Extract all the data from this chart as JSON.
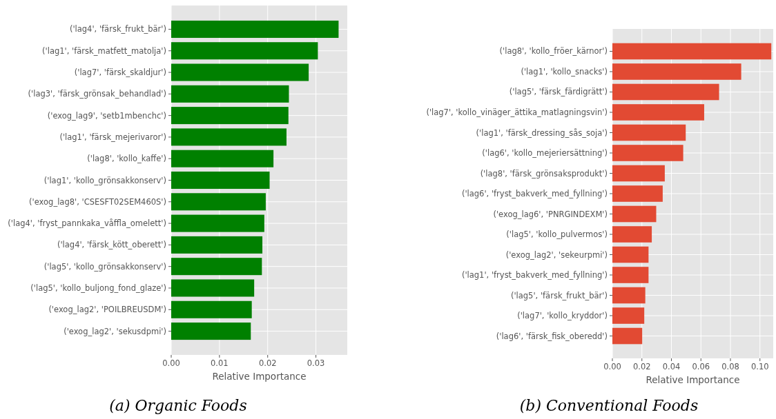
{
  "chart_data": [
    {
      "type": "bar",
      "orientation": "horizontal",
      "xlabel": "Relative Importance",
      "categories": [
        "('lag4', 'färsk_frukt_bär')",
        "('lag1', 'färsk_matfett_matolja')",
        "('lag7', 'färsk_skaldjur')",
        "('lag3', 'färsk_grönsak_behandlad')",
        "('exog_lag9', 'setb1mbenchc')",
        "('lag1', 'färsk_mejerivaror')",
        "('lag8', 'kollo_kaffe')",
        "('lag1', 'kollo_grönsakkonserv')",
        "('exog_lag8', 'CSESFT02SEM460S')",
        "('lag4', 'fryst_pannkaka_våffla_omelett')",
        "('lag4', 'färsk_kött_oberett')",
        "('lag5', 'kollo_grönsakkonserv')",
        "('lag5', 'kollo_buljong_fond_glaze')",
        "('exog_lag2', 'POILBREUSDM')",
        "('exog_lag2', 'sekusdpmi')"
      ],
      "values": [
        0.0347,
        0.0304,
        0.0285,
        0.0244,
        0.0243,
        0.0239,
        0.0212,
        0.0204,
        0.0196,
        0.0193,
        0.0189,
        0.0188,
        0.0172,
        0.0167,
        0.0165
      ],
      "color": "#008000",
      "xlim": [
        0,
        0.0365
      ],
      "xticks": [
        {
          "value": 0,
          "label": "0.00"
        },
        {
          "value": 0.01,
          "label": "0.01"
        },
        {
          "value": 0.02,
          "label": "0.02"
        },
        {
          "value": 0.03,
          "label": "0.03"
        }
      ],
      "grid": true,
      "annotations": [
        "(a) Organic Foods"
      ]
    },
    {
      "type": "bar",
      "orientation": "horizontal",
      "xlabel": "Relative Importance",
      "categories": [
        "('lag8', 'kollo_fröer_kärnor')",
        "('lag1', 'kollo_snacks')",
        "('lag5', 'färsk_färdigrätt')",
        "('lag7', 'kollo_vinäger_ättika_matlagningsvin')",
        "('lag1', 'färsk_dressing_sås_soja')",
        "('lag6', 'kollo_mejeriersättning')",
        "('lag8', 'färsk_grönsaksprodukt')",
        "('lag6', 'fryst_bakverk_med_fyllning')",
        "('exog_lag6', 'PNRGINDEXM')",
        "('lag5', 'kollo_pulvermos')",
        "('exog_lag2', 'sekeurpmi')",
        "('lag1', 'fryst_bakverk_med_fyllning')",
        "('lag5', 'färsk_frukt_bär')",
        "('lag7', 'kollo_kryddor')",
        "('lag6', 'färsk_fisk_oberedd')"
      ],
      "values": [
        0.1077,
        0.0873,
        0.0723,
        0.0622,
        0.0497,
        0.048,
        0.0355,
        0.0341,
        0.0297,
        0.0267,
        0.0245,
        0.0245,
        0.0223,
        0.0216,
        0.0202
      ],
      "color": "#e24a33",
      "xlim": [
        0,
        0.109
      ],
      "xticks": [
        {
          "value": 0,
          "label": "0.00"
        },
        {
          "value": 0.02,
          "label": "0.02"
        },
        {
          "value": 0.04,
          "label": "0.04"
        },
        {
          "value": 0.06,
          "label": "0.06"
        },
        {
          "value": 0.08,
          "label": "0.08"
        },
        {
          "value": 0.1,
          "label": "0.10"
        }
      ],
      "grid": true,
      "annotations": [
        "(b) Conventional Foods"
      ]
    }
  ]
}
